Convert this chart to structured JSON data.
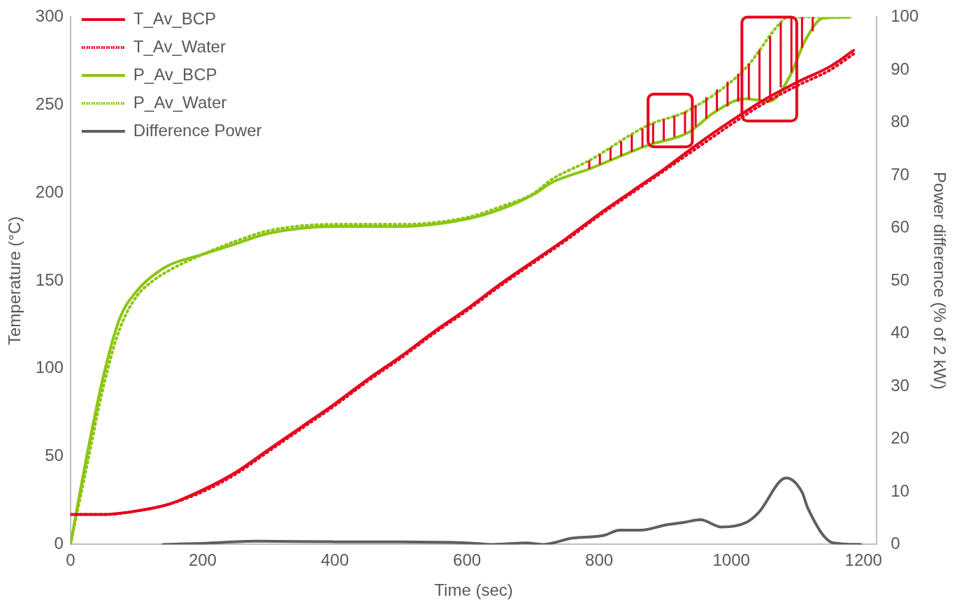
{
  "chart_data": {
    "type": "line",
    "xlabel": "Time (sec)",
    "ylabel": "Temperature (°C)",
    "y2label": "Power difference (% of 2 kW)",
    "xlim": [
      0,
      1220
    ],
    "xticks": [
      0,
      200,
      400,
      600,
      800,
      1000,
      1200
    ],
    "ylim": [
      0,
      300
    ],
    "yticks": [
      0,
      50,
      100,
      150,
      200,
      250,
      300
    ],
    "y2lim": [
      0,
      100
    ],
    "y2ticks": [
      0,
      10,
      20,
      30,
      40,
      50,
      60,
      70,
      80,
      90,
      100
    ],
    "grid": false,
    "legend": "top left",
    "marker": "none",
    "series": [
      {
        "name": "T_Av_BCP",
        "color": "#e8001c",
        "line_style": "solid",
        "x": [
          0,
          50,
          100,
          150,
          200,
          250,
          300,
          350,
          400,
          450,
          500,
          550,
          600,
          650,
          700,
          750,
          800,
          850,
          900,
          950,
          1000,
          1050,
          1100,
          1150,
          1185
        ],
        "values": [
          17,
          17,
          19,
          23,
          31,
          41,
          54,
          67,
          80,
          94,
          107,
          121,
          134,
          148,
          161,
          174,
          188,
          201,
          214,
          228,
          241,
          253,
          263,
          272,
          281
        ]
      },
      {
        "name": "T_Av_Water",
        "color": "#e8001c",
        "line_style": "dotted",
        "x": [
          0,
          50,
          100,
          150,
          200,
          250,
          300,
          350,
          400,
          450,
          500,
          550,
          600,
          650,
          700,
          750,
          800,
          850,
          900,
          950,
          1000,
          1050,
          1100,
          1150,
          1185
        ],
        "values": [
          17,
          17,
          19,
          23,
          30,
          40,
          53,
          66,
          79,
          93,
          106,
          120,
          133,
          147,
          160,
          173,
          187,
          200,
          213,
          226,
          239,
          251,
          261,
          270,
          279
        ]
      },
      {
        "name": "P_Av_BCP",
        "axis": "y2",
        "color": "#8cc510",
        "line_style": "solid",
        "x": [
          0,
          25,
          50,
          75,
          100,
          125,
          150,
          200,
          250,
          300,
          400,
          500,
          600,
          650,
          700,
          728,
          785,
          874,
          935,
          974,
          1020,
          1058,
          1089,
          1112,
          1139,
          1180
        ],
        "values": [
          0,
          17,
          32,
          43,
          48,
          51,
          53,
          55,
          57,
          59,
          60.3,
          60.3,
          61.7,
          63.5,
          66.3,
          68.6,
          71.2,
          75.7,
          78.1,
          81.9,
          84.5,
          84,
          88.9,
          95.6,
          99.8,
          100
        ]
      },
      {
        "name": "P_Av_Water",
        "axis": "y2",
        "color": "#8cc510",
        "line_style": "dotted",
        "x": [
          0,
          25,
          50,
          75,
          100,
          125,
          150,
          200,
          250,
          300,
          400,
          500,
          600,
          650,
          700,
          728,
          785,
          874,
          935,
          1020,
          1074,
          1085,
          1180
        ],
        "values": [
          0,
          15,
          30,
          41,
          47,
          50,
          52,
          55,
          57.5,
          59.5,
          60.7,
          60.7,
          62,
          64,
          66.5,
          69.2,
          72.8,
          79.5,
          82.3,
          90.1,
          98.9,
          100,
          100
        ]
      },
      {
        "name": "Difference Power",
        "axis": "y2",
        "color": "#5f5f5f",
        "line_style": "solid",
        "x": [
          140,
          200,
          280,
          400,
          500,
          600,
          640,
          690,
          714,
          760,
          807,
          831,
          863,
          901,
          929,
          953,
          985,
          1023,
          1041,
          1083,
          1107,
          1116,
          1154,
          1196
        ],
        "values": [
          0,
          0.2,
          0.6,
          0.5,
          0.5,
          0.3,
          0,
          0.3,
          0,
          1.2,
          1.7,
          2.7,
          2.7,
          3.7,
          4.2,
          4.7,
          3.3,
          4.2,
          6,
          12.6,
          9.9,
          6.8,
          0.3,
          0
        ]
      }
    ]
  }
}
